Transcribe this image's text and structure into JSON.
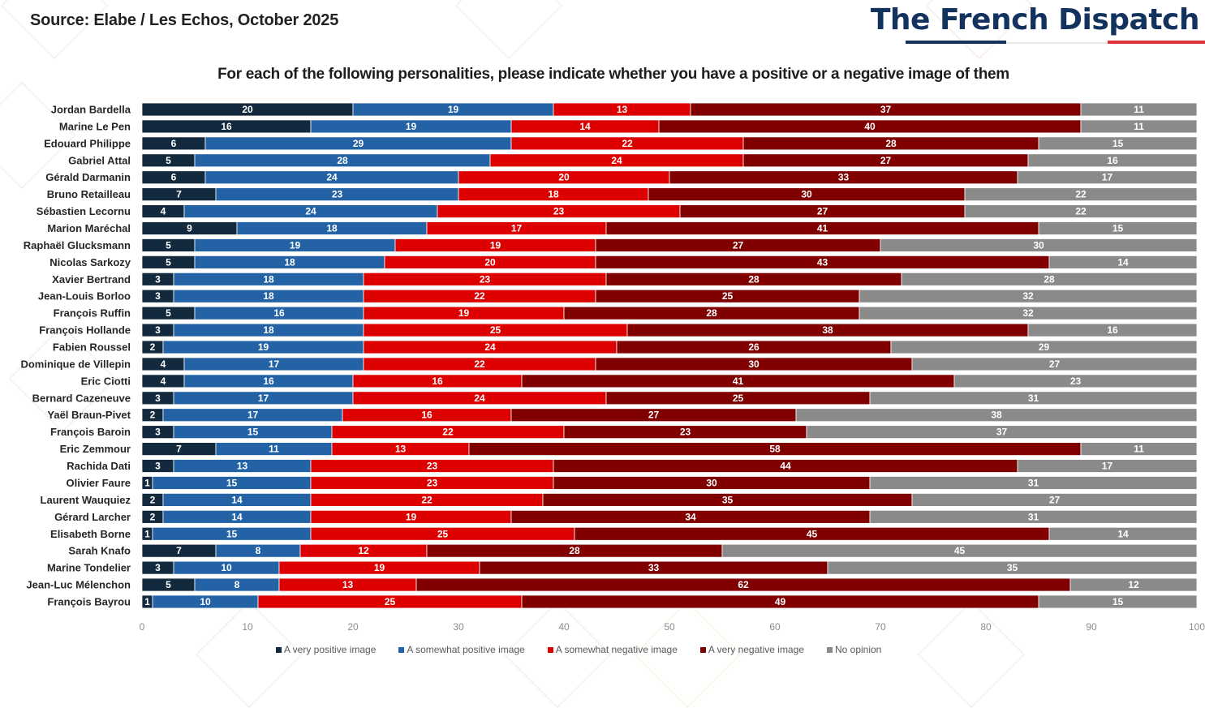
{
  "header": {
    "source": "Source: Elabe / Les Echos, October 2025",
    "brand": "The French Dispatch",
    "brand_colors": {
      "blue": "#13335e",
      "red": "#e0303a"
    }
  },
  "chart_data": {
    "type": "bar",
    "orientation": "horizontal",
    "stacked": true,
    "title": "For each of the following personalities, please indicate whether you have a positive or a negative image of them",
    "xlabel": "",
    "ylabel": "",
    "xlim": [
      0,
      100
    ],
    "xticks": [
      "0",
      "10",
      "20",
      "30",
      "40",
      "50",
      "60",
      "70",
      "80",
      "90",
      "100"
    ],
    "grid": false,
    "legend_position": "bottom",
    "categories": [
      "Jordan Bardella",
      "Marine Le Pen",
      "Edouard Philippe",
      "Gabriel Attal",
      "Gérald Darmanin",
      "Bruno Retailleau",
      "Sébastien Lecornu",
      "Marion Maréchal",
      "Raphaël Glucksmann",
      "Nicolas Sarkozy",
      "Xavier Bertrand",
      "Jean-Louis Borloo",
      "François Ruffin",
      "François Hollande",
      "Fabien Roussel",
      "Dominique de Villepin",
      "Eric Ciotti",
      "Bernard Cazeneuve",
      "Yaël Braun-Pivet",
      "François Baroin",
      "Eric Zemmour",
      "Rachida Dati",
      "Olivier Faure",
      "Laurent Wauquiez",
      "Gérard Larcher",
      "Elisabeth Borne",
      "Sarah Knafo",
      "Marine Tondelier",
      "Jean-Luc Mélenchon",
      "François Bayrou"
    ],
    "series": [
      {
        "name": "A very positive image",
        "color": "#13293d",
        "values": [
          20,
          16,
          6,
          5,
          6,
          7,
          4,
          9,
          5,
          5,
          3,
          3,
          5,
          3,
          2,
          4,
          4,
          3,
          2,
          3,
          7,
          3,
          1,
          2,
          2,
          1,
          7,
          3,
          5,
          1
        ]
      },
      {
        "name": "A somewhat positive image",
        "color": "#2462a6",
        "values": [
          19,
          19,
          29,
          28,
          24,
          23,
          24,
          18,
          19,
          18,
          18,
          18,
          16,
          18,
          19,
          17,
          16,
          17,
          17,
          15,
          11,
          13,
          15,
          14,
          14,
          15,
          8,
          10,
          8,
          10
        ]
      },
      {
        "name": "A somewhat negative image",
        "color": "#dc0000",
        "values": [
          13,
          14,
          22,
          24,
          20,
          18,
          23,
          17,
          19,
          20,
          23,
          22,
          19,
          25,
          24,
          22,
          16,
          24,
          16,
          22,
          13,
          23,
          23,
          22,
          19,
          25,
          12,
          19,
          13,
          25
        ]
      },
      {
        "name": "A very negative image",
        "color": "#800000",
        "values": [
          37,
          40,
          28,
          27,
          33,
          30,
          27,
          41,
          27,
          43,
          28,
          25,
          28,
          38,
          26,
          30,
          41,
          25,
          27,
          23,
          58,
          44,
          30,
          35,
          34,
          45,
          28,
          33,
          62,
          49
        ]
      },
      {
        "name": "No opinion",
        "color": "#8a8a8a",
        "values": [
          11,
          11,
          15,
          16,
          17,
          22,
          22,
          15,
          30,
          14,
          28,
          32,
          32,
          16,
          29,
          27,
          23,
          31,
          38,
          37,
          11,
          17,
          31,
          27,
          31,
          14,
          45,
          35,
          12,
          15
        ]
      }
    ]
  }
}
